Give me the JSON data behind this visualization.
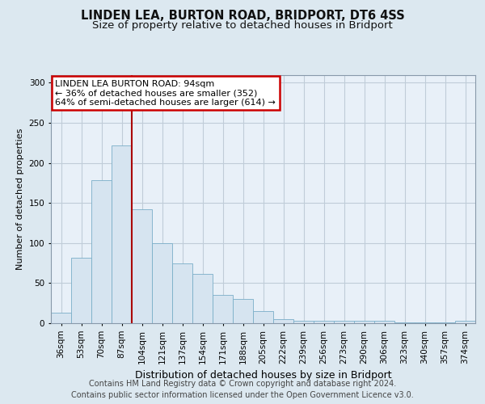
{
  "title": "LINDEN LEA, BURTON ROAD, BRIDPORT, DT6 4SS",
  "subtitle": "Size of property relative to detached houses in Bridport",
  "xlabel": "Distribution of detached houses by size in Bridport",
  "ylabel": "Number of detached properties",
  "footer_line1": "Contains HM Land Registry data © Crown copyright and database right 2024.",
  "footer_line2": "Contains public sector information licensed under the Open Government Licence v3.0.",
  "categories": [
    "36sqm",
    "53sqm",
    "70sqm",
    "87sqm",
    "104sqm",
    "121sqm",
    "137sqm",
    "154sqm",
    "171sqm",
    "188sqm",
    "205sqm",
    "222sqm",
    "239sqm",
    "256sqm",
    "273sqm",
    "290sqm",
    "306sqm",
    "323sqm",
    "340sqm",
    "357sqm",
    "374sqm"
  ],
  "values": [
    13,
    82,
    178,
    222,
    142,
    100,
    75,
    62,
    35,
    30,
    15,
    5,
    3,
    3,
    3,
    3,
    3,
    1,
    1,
    1,
    3
  ],
  "bar_color": "#d6e4f0",
  "bar_edge_color": "#7aaec8",
  "vline_x": 3.5,
  "vline_color": "#aa0000",
  "annotation_text": "LINDEN LEA BURTON ROAD: 94sqm\n← 36% of detached houses are smaller (352)\n64% of semi-detached houses are larger (614) →",
  "annotation_box_facecolor": "#ffffff",
  "annotation_box_edgecolor": "#cc0000",
  "ylim": [
    0,
    310
  ],
  "yticks": [
    0,
    50,
    100,
    150,
    200,
    250,
    300
  ],
  "background_color": "#dce8f0",
  "plot_background": "#e8f0f8",
  "grid_color": "#c0ccd8",
  "title_fontsize": 10.5,
  "subtitle_fontsize": 9.5,
  "xlabel_fontsize": 9,
  "ylabel_fontsize": 8,
  "tick_fontsize": 7.5,
  "annotation_fontsize": 8,
  "footer_fontsize": 7
}
